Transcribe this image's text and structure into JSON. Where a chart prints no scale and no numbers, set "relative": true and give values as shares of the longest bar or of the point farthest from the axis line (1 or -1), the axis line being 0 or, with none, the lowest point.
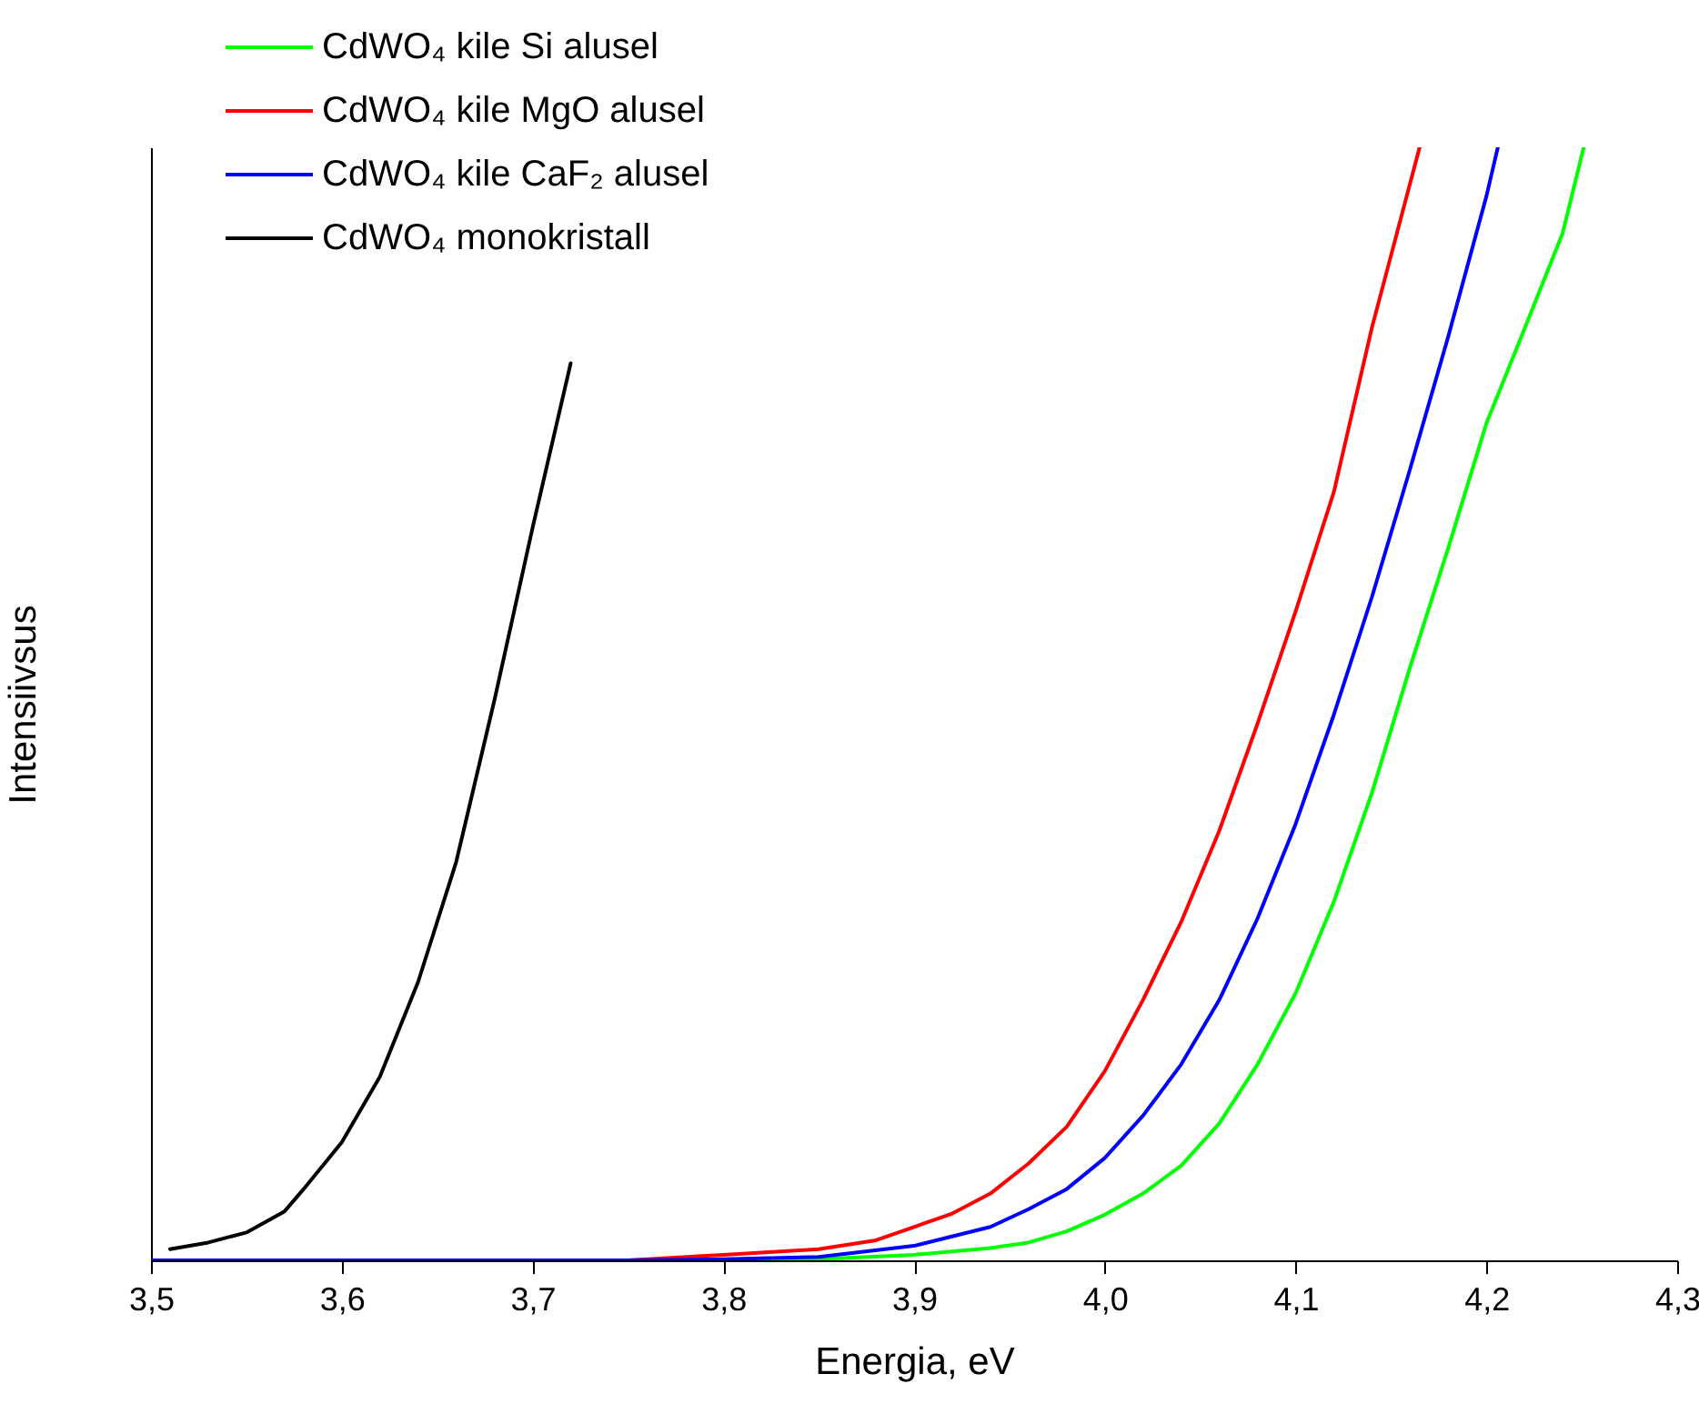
{
  "chart_data": {
    "type": "line",
    "relative": true,
    "xlabel": "Energia, eV",
    "ylabel": "Intensiivsus",
    "xlim": [
      3.5,
      4.3
    ],
    "xticks": [
      {
        "value": 3.5,
        "label": "3,5"
      },
      {
        "value": 3.6,
        "label": "3,6"
      },
      {
        "value": 3.7,
        "label": "3,7"
      },
      {
        "value": 3.8,
        "label": "3,8"
      },
      {
        "value": 3.9,
        "label": "3,9"
      },
      {
        "value": 4.0,
        "label": "4,0"
      },
      {
        "value": 4.1,
        "label": "4,1"
      },
      {
        "value": 4.2,
        "label": "4,2"
      },
      {
        "value": 4.3,
        "label": "4,3"
      }
    ],
    "tick_labels": "x",
    "legend": "top left",
    "line_style": "solid",
    "marker": "none",
    "series": [
      {
        "name": "CdWO₄ kile Si alusel",
        "color": "#00ff00",
        "x": [
          3.5,
          3.8,
          3.85,
          3.9,
          3.94,
          3.96,
          3.98,
          4.0,
          4.02,
          4.04,
          4.06,
          4.08,
          4.1,
          4.12,
          4.14,
          4.16,
          4.18,
          4.2,
          4.22,
          4.24,
          4.251
        ],
        "values": [
          0,
          0,
          0.001,
          0.005,
          0.011,
          0.016,
          0.026,
          0.041,
          0.06,
          0.085,
          0.123,
          0.176,
          0.24,
          0.322,
          0.42,
          0.533,
          0.64,
          0.752,
          0.837,
          0.923,
          1
        ]
      },
      {
        "name": "CdWO₄ kile MgO alusel",
        "color": "#ff0000",
        "x": [
          3.5,
          3.75,
          3.8,
          3.85,
          3.88,
          3.9,
          3.92,
          3.94,
          3.96,
          3.98,
          4.0,
          4.02,
          4.04,
          4.06,
          4.08,
          4.1,
          4.12,
          4.14,
          4.165
        ],
        "values": [
          0,
          0,
          0.005,
          0.01,
          0.018,
          0.03,
          0.042,
          0.06,
          0.087,
          0.12,
          0.17,
          0.234,
          0.304,
          0.386,
          0.482,
          0.583,
          0.69,
          0.838,
          1
        ]
      },
      {
        "name": "CdWO₄ kile CaF₂ alusel",
        "color": "#0000ff",
        "x": [
          3.5,
          3.75,
          3.8,
          3.85,
          3.9,
          3.94,
          3.96,
          3.98,
          4.0,
          4.02,
          4.04,
          4.06,
          4.08,
          4.1,
          4.12,
          4.14,
          4.16,
          4.18,
          4.2,
          4.206
        ],
        "values": [
          0,
          0,
          0.001,
          0.003,
          0.013,
          0.03,
          0.046,
          0.064,
          0.092,
          0.13,
          0.176,
          0.234,
          0.307,
          0.392,
          0.49,
          0.596,
          0.711,
          0.83,
          0.956,
          1
        ]
      },
      {
        "name": "CdWO₄ monokristall",
        "color": "#000000",
        "x": [
          3.51,
          3.53,
          3.55,
          3.57,
          3.58,
          3.6,
          3.62,
          3.64,
          3.66,
          3.68,
          3.7,
          3.72
        ],
        "values": [
          0.01,
          0.016,
          0.025,
          0.044,
          0.064,
          0.106,
          0.165,
          0.25,
          0.358,
          0.503,
          0.658,
          0.806
        ]
      }
    ]
  }
}
